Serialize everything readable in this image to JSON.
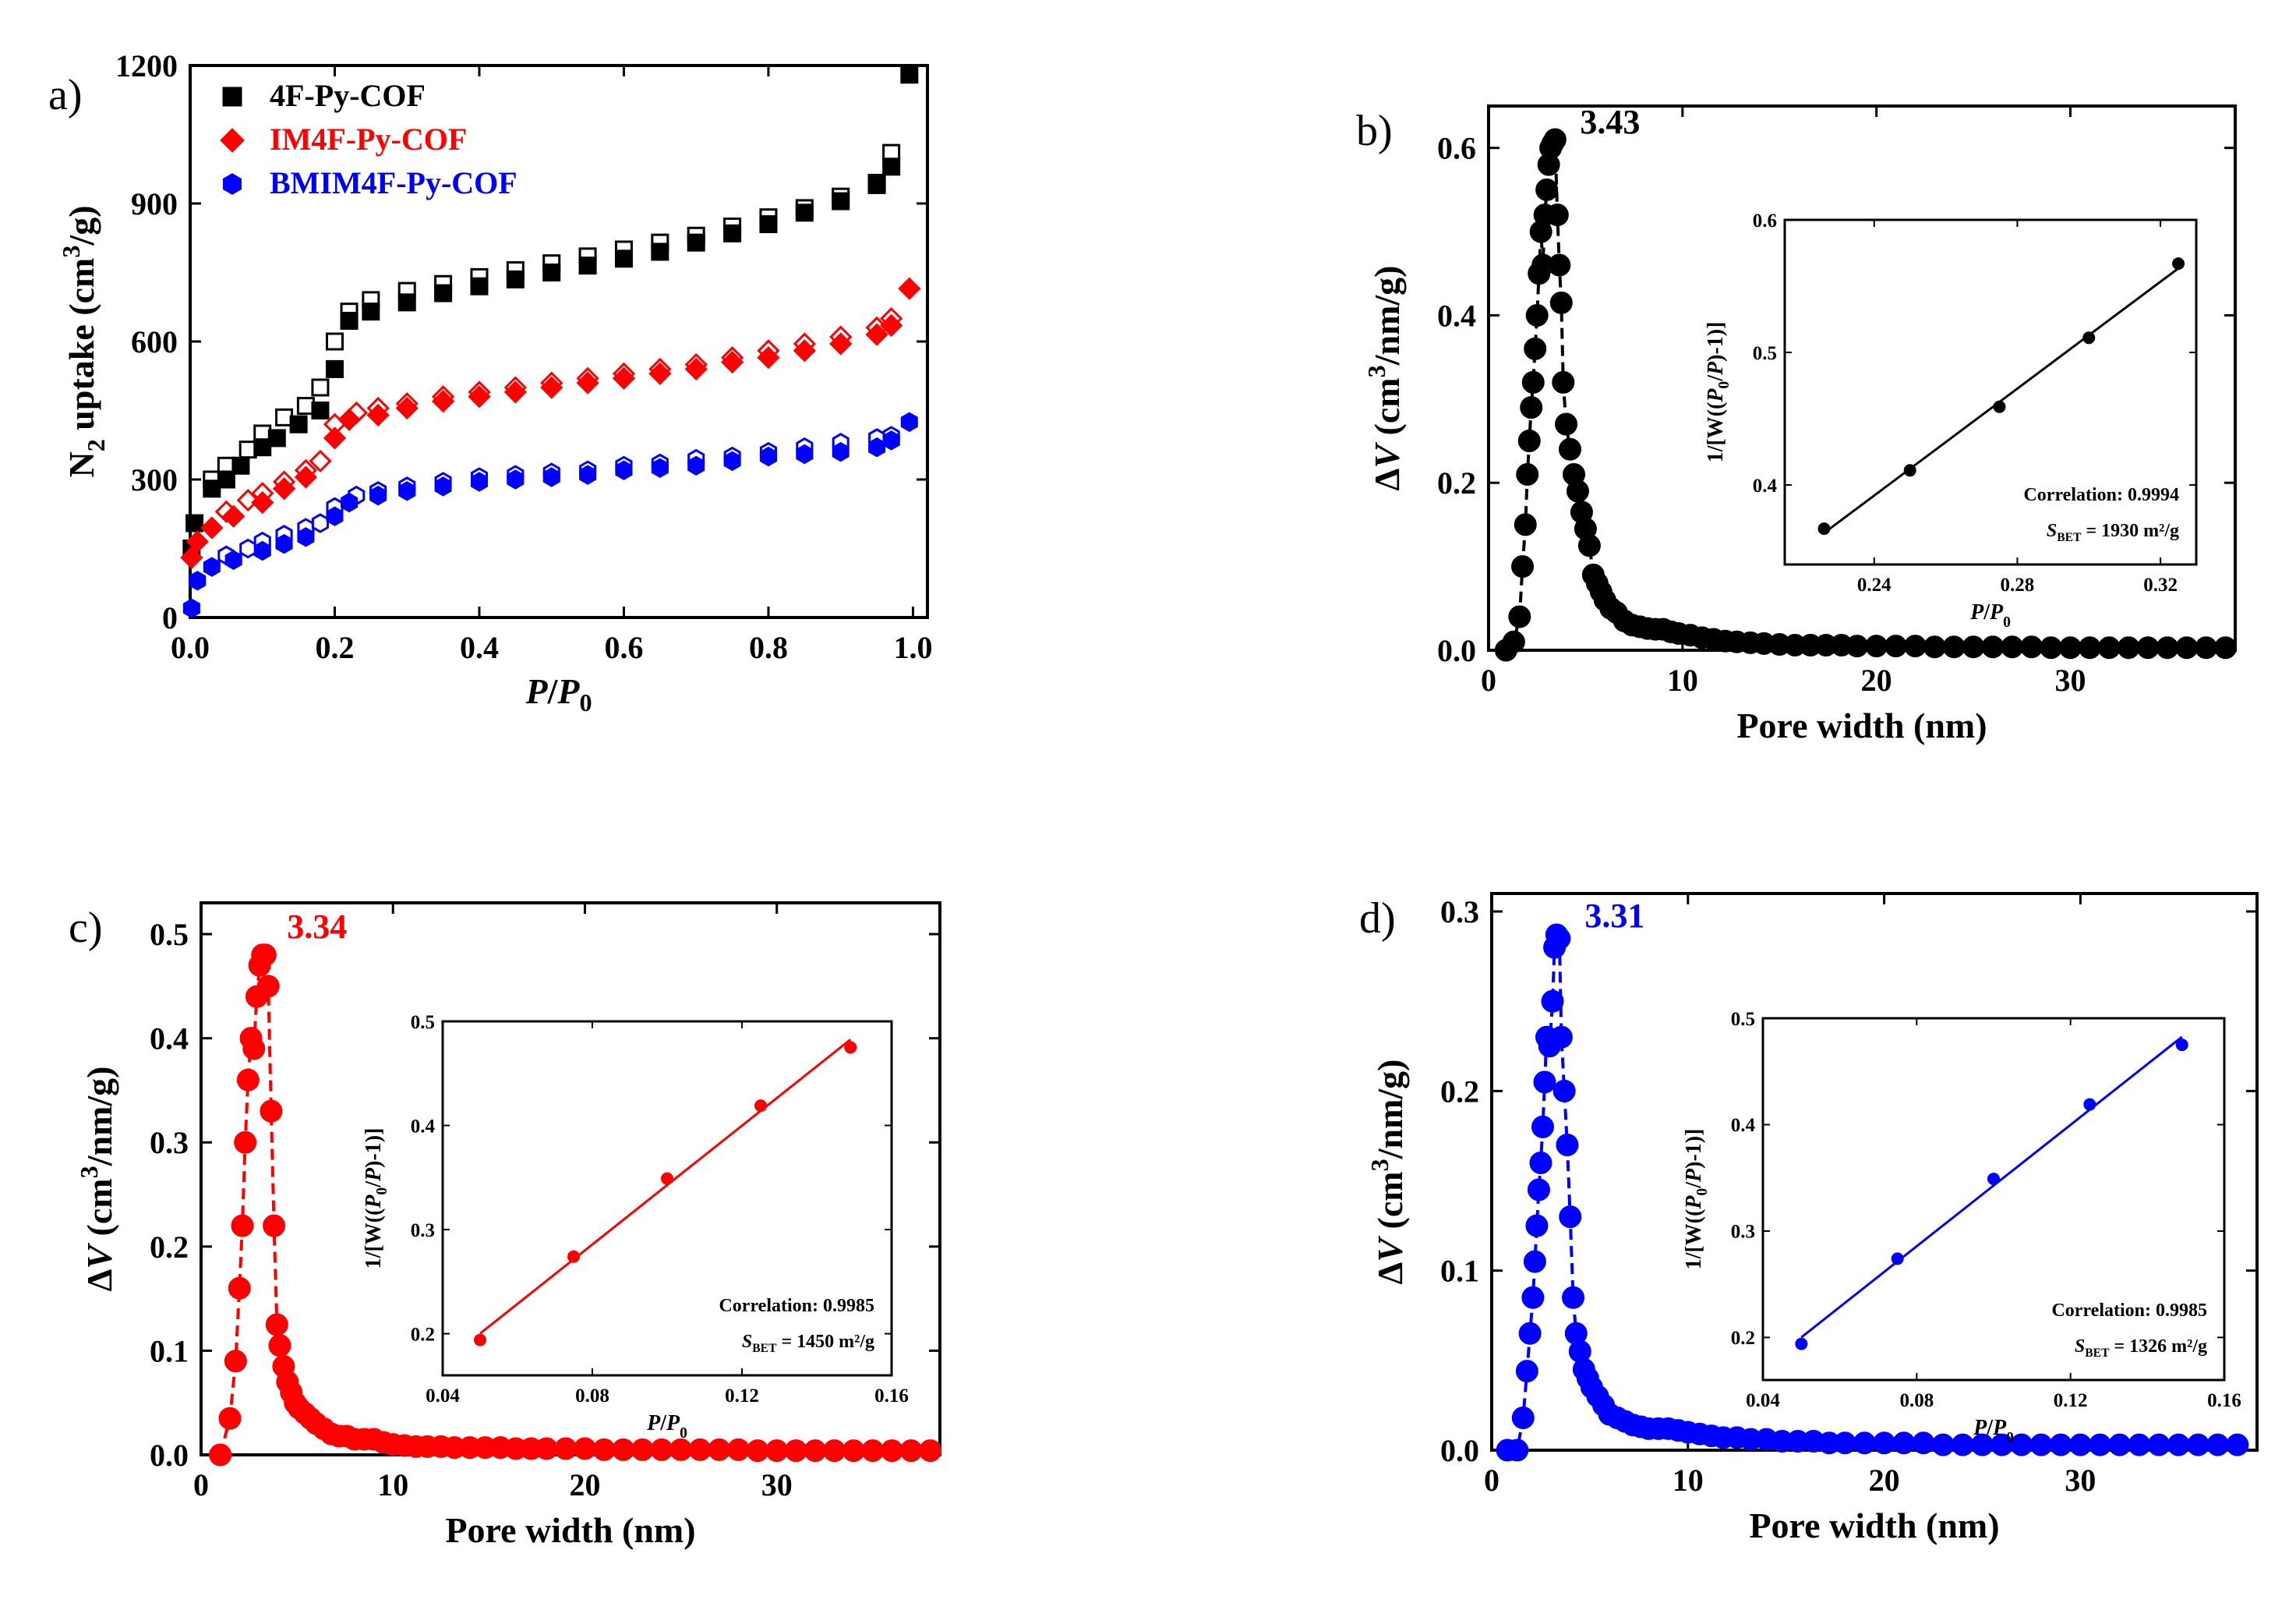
{
  "chart_data": [
    {
      "id": "a",
      "type": "scatter",
      "panel_label": "a)",
      "xlabel": "P/P0",
      "ylabel": "N2 uptake (cm3/g)",
      "xlim": [
        0,
        1.02
      ],
      "ylim": [
        0,
        1200
      ],
      "xticks": [
        "0.0",
        "0.2",
        "0.4",
        "0.6",
        "0.8",
        "1.0"
      ],
      "xtick_values": [
        0,
        0.2,
        0.4,
        0.6,
        0.8,
        1.0
      ],
      "yticks": [
        "0",
        "300",
        "600",
        "900",
        "1200"
      ],
      "ytick_values": [
        0,
        300,
        600,
        900,
        1200
      ],
      "legend_position": "top-left",
      "series": [
        {
          "name": "4F-Py-COF",
          "color": "#000000",
          "marker": "square",
          "adsorption": {
            "x": [
              0.002,
              0.006,
              0.03,
              0.05,
              0.07,
              0.1,
              0.12,
              0.15,
              0.18,
              0.2,
              0.22,
              0.25,
              0.3,
              0.35,
              0.4,
              0.45,
              0.5,
              0.55,
              0.6,
              0.65,
              0.7,
              0.75,
              0.8,
              0.85,
              0.9,
              0.95,
              0.97,
              0.995
            ],
            "y": [
              150,
              205,
              280,
              300,
              330,
              370,
              390,
              420,
              450,
              540,
              645,
              665,
              685,
              705,
              720,
              735,
              750,
              765,
              780,
              795,
              815,
              835,
              855,
              880,
              905,
              940,
              980,
              1180
            ]
          },
          "desorption": {
            "x": [
              0.03,
              0.05,
              0.08,
              0.1,
              0.13,
              0.16,
              0.18,
              0.2,
              0.22,
              0.25,
              0.3,
              0.35,
              0.4,
              0.45,
              0.5,
              0.55,
              0.6,
              0.65,
              0.7,
              0.75,
              0.8,
              0.85,
              0.9,
              0.95,
              0.97
            ],
            "y": [
              300,
              330,
              365,
              400,
              435,
              460,
              500,
              600,
              665,
              690,
              710,
              725,
              740,
              755,
              770,
              785,
              800,
              815,
              830,
              850,
              870,
              890,
              915,
              945,
              1010
            ]
          }
        },
        {
          "name": "IM4F-Py-COF",
          "color": "#ff0000",
          "marker": "diamond",
          "adsorption": {
            "x": [
              0.002,
              0.01,
              0.03,
              0.06,
              0.1,
              0.13,
              0.16,
              0.2,
              0.22,
              0.26,
              0.3,
              0.35,
              0.4,
              0.45,
              0.5,
              0.55,
              0.6,
              0.65,
              0.7,
              0.75,
              0.8,
              0.85,
              0.9,
              0.95,
              0.97,
              0.995
            ],
            "y": [
              130,
              165,
              195,
              220,
              250,
              280,
              305,
              390,
              430,
              440,
              455,
              470,
              480,
              490,
              500,
              510,
              520,
              530,
              540,
              555,
              565,
              580,
              595,
              615,
              635,
              715
            ]
          },
          "desorption": {
            "x": [
              0.05,
              0.08,
              0.1,
              0.13,
              0.16,
              0.18,
              0.2,
              0.23,
              0.26,
              0.3,
              0.35,
              0.4,
              0.45,
              0.5,
              0.55,
              0.6,
              0.65,
              0.7,
              0.75,
              0.8,
              0.85,
              0.9,
              0.95,
              0.97
            ],
            "y": [
              230,
              255,
              270,
              295,
              320,
              340,
              420,
              445,
              455,
              465,
              480,
              490,
              500,
              510,
              520,
              530,
              540,
              550,
              565,
              580,
              595,
              610,
              630,
              650
            ]
          }
        },
        {
          "name": "BMIM4F-Py-COF",
          "color": "#0000ff",
          "marker": "hexagon",
          "adsorption": {
            "x": [
              0.002,
              0.01,
              0.03,
              0.06,
              0.1,
              0.13,
              0.16,
              0.2,
              0.22,
              0.26,
              0.3,
              0.35,
              0.4,
              0.45,
              0.5,
              0.55,
              0.6,
              0.65,
              0.7,
              0.75,
              0.8,
              0.85,
              0.9,
              0.95,
              0.97,
              0.995
            ],
            "y": [
              20,
              80,
              110,
              125,
              145,
              160,
              175,
              220,
              250,
              265,
              275,
              285,
              295,
              300,
              305,
              310,
              320,
              325,
              330,
              340,
              350,
              355,
              360,
              370,
              385,
              425
            ]
          },
          "desorption": {
            "x": [
              0.05,
              0.08,
              0.1,
              0.13,
              0.16,
              0.18,
              0.2,
              0.23,
              0.26,
              0.3,
              0.35,
              0.4,
              0.45,
              0.5,
              0.55,
              0.6,
              0.65,
              0.7,
              0.75,
              0.8,
              0.85,
              0.9,
              0.95,
              0.97
            ],
            "y": [
              135,
              150,
              165,
              180,
              195,
              205,
              240,
              265,
              275,
              285,
              295,
              305,
              310,
              315,
              320,
              330,
              335,
              345,
              350,
              360,
              370,
              380,
              390,
              395
            ]
          }
        }
      ]
    },
    {
      "id": "b",
      "type": "scatter",
      "panel_label": "b)",
      "color": "#000000",
      "xlabel": "Pore width (nm)",
      "ylabel": "ΔV (cm3/nm/g)",
      "xlim": [
        0,
        38.5
      ],
      "ylim": [
        0,
        0.65
      ],
      "xticks": [
        "0",
        "10",
        "20",
        "30"
      ],
      "xtick_values": [
        0,
        10,
        20,
        30
      ],
      "yticks": [
        "0.0",
        "0.2",
        "0.4",
        "0.6"
      ],
      "ytick_values": [
        0,
        0.2,
        0.4,
        0.6
      ],
      "peak_label": "3.43",
      "peak": {
        "x": 3.43,
        "y": 0.61
      },
      "x": [
        0.9,
        1.3,
        1.6,
        1.75,
        1.9,
        2.0,
        2.1,
        2.2,
        2.3,
        2.4,
        2.5,
        2.6,
        2.7,
        2.8,
        2.9,
        3.0,
        3.1,
        3.2,
        3.3,
        3.43,
        3.55,
        3.65,
        3.75,
        3.85,
        4.0,
        4.2,
        4.4,
        4.6,
        4.8,
        5.0,
        5.2,
        5.4,
        5.6,
        5.8,
        6.0,
        6.3,
        6.6,
        7.0,
        7.4,
        7.8,
        8.2,
        8.6,
        9.0,
        9.4,
        9.8,
        10.4,
        11.0,
        11.6,
        12.2,
        12.8,
        13.5,
        14.2,
        15.0,
        15.8,
        16.6,
        17.4,
        18.2,
        19.0,
        20.0,
        21.0,
        22.0,
        23.0,
        24.0,
        25.0,
        26.0,
        27.0,
        28.0,
        29.0,
        30.0,
        31.0,
        32.0,
        33.0,
        34.0,
        35.0,
        36.0,
        37.0,
        38.0
      ],
      "y": [
        0.0,
        0.01,
        0.04,
        0.1,
        0.15,
        0.21,
        0.25,
        0.29,
        0.32,
        0.36,
        0.4,
        0.45,
        0.5,
        0.46,
        0.52,
        0.55,
        0.58,
        0.6,
        0.605,
        0.61,
        0.52,
        0.46,
        0.415,
        0.32,
        0.27,
        0.24,
        0.21,
        0.19,
        0.165,
        0.145,
        0.125,
        0.09,
        0.08,
        0.07,
        0.06,
        0.05,
        0.045,
        0.035,
        0.03,
        0.028,
        0.026,
        0.025,
        0.025,
        0.022,
        0.02,
        0.018,
        0.015,
        0.013,
        0.011,
        0.01,
        0.009,
        0.008,
        0.007,
        0.006,
        0.006,
        0.006,
        0.006,
        0.005,
        0.005,
        0.005,
        0.005,
        0.004,
        0.004,
        0.004,
        0.004,
        0.004,
        0.004,
        0.003,
        0.003,
        0.003,
        0.003,
        0.003,
        0.003,
        0.003,
        0.003,
        0.003,
        0.003
      ],
      "inset": {
        "type": "line",
        "xlabel": "P/P0",
        "ylabel": "1/[W((P0/P)-1)]",
        "xlim": [
          0.215,
          0.33
        ],
        "ylim": [
          0.34,
          0.6
        ],
        "xticks": [
          "0.24",
          "0.28",
          "0.32"
        ],
        "xtick_values": [
          0.24,
          0.28,
          0.32
        ],
        "yticks": [
          "0.4",
          "0.5",
          "0.6"
        ],
        "ytick_values": [
          0.4,
          0.5,
          0.6
        ],
        "x": [
          0.226,
          0.25,
          0.275,
          0.3,
          0.325
        ],
        "y": [
          0.367,
          0.411,
          0.459,
          0.511,
          0.567
        ],
        "correlation": "Correlation: 0.9994",
        "sbet_prefix": "S",
        "sbet_sub": "BET",
        "sbet_value": "= 1930 m2/g"
      }
    },
    {
      "id": "c",
      "type": "scatter",
      "panel_label": "c)",
      "color": "#ff0000",
      "xlabel": "Pore width (nm)",
      "ylabel": "ΔV (cm3/nm/g)",
      "xlim": [
        0,
        38.5
      ],
      "ylim": [
        0,
        0.53
      ],
      "xticks": [
        "0",
        "10",
        "20",
        "30"
      ],
      "xtick_values": [
        0,
        10,
        20,
        30
      ],
      "yticks": [
        "0.0",
        "0.1",
        "0.2",
        "0.3",
        "0.4",
        "0.5"
      ],
      "ytick_values": [
        0,
        0.1,
        0.2,
        0.3,
        0.4,
        0.5
      ],
      "peak_label": "3.34",
      "peak": {
        "x": 3.34,
        "y": 0.48
      },
      "x": [
        1.0,
        1.5,
        1.8,
        2.0,
        2.15,
        2.3,
        2.45,
        2.6,
        2.75,
        2.9,
        3.05,
        3.2,
        3.34,
        3.5,
        3.65,
        3.8,
        3.95,
        4.1,
        4.3,
        4.5,
        4.7,
        4.9,
        5.1,
        5.4,
        5.7,
        6.0,
        6.4,
        6.8,
        7.2,
        7.6,
        8.0,
        8.5,
        9.0,
        9.5,
        10.0,
        10.6,
        11.2,
        11.8,
        12.5,
        13.2,
        14.0,
        14.8,
        15.6,
        16.4,
        17.2,
        18.0,
        19.0,
        20.0,
        21.0,
        22.0,
        23.0,
        24.0,
        25.0,
        26.0,
        27.0,
        28.0,
        29.0,
        30.0,
        31.0,
        32.0,
        33.0,
        34.0,
        35.0,
        36.0,
        37.0,
        38.0
      ],
      "y": [
        0.0,
        0.035,
        0.09,
        0.16,
        0.22,
        0.3,
        0.36,
        0.4,
        0.39,
        0.44,
        0.47,
        0.48,
        0.48,
        0.45,
        0.33,
        0.22,
        0.125,
        0.105,
        0.085,
        0.07,
        0.06,
        0.05,
        0.045,
        0.04,
        0.035,
        0.03,
        0.025,
        0.02,
        0.018,
        0.018,
        0.015,
        0.015,
        0.015,
        0.012,
        0.01,
        0.009,
        0.008,
        0.008,
        0.008,
        0.007,
        0.007,
        0.007,
        0.007,
        0.006,
        0.006,
        0.006,
        0.006,
        0.006,
        0.005,
        0.005,
        0.005,
        0.005,
        0.005,
        0.005,
        0.005,
        0.005,
        0.004,
        0.004,
        0.004,
        0.004,
        0.004,
        0.004,
        0.004,
        0.004,
        0.004,
        0.004
      ],
      "inset": {
        "type": "line",
        "xlabel": "P/P0",
        "ylabel": "1/[W((P0/P)-1)]",
        "xlim": [
          0.04,
          0.16
        ],
        "ylim": [
          0.16,
          0.5
        ],
        "xticks": [
          "0.04",
          "0.08",
          "0.12",
          "0.16"
        ],
        "xtick_values": [
          0.04,
          0.08,
          0.12,
          0.16
        ],
        "yticks": [
          "0.2",
          "0.3",
          "0.4",
          "0.5"
        ],
        "ytick_values": [
          0.2,
          0.3,
          0.4,
          0.5
        ],
        "x": [
          0.05,
          0.075,
          0.1,
          0.125,
          0.149
        ],
        "y": [
          0.194,
          0.274,
          0.349,
          0.419,
          0.475
        ],
        "correlation": "Correlation: 0.9985",
        "sbet_prefix": "S",
        "sbet_sub": "BET",
        "sbet_value": "= 1450 m2/g"
      }
    },
    {
      "id": "d",
      "type": "scatter",
      "panel_label": "d)",
      "color": "#0000ff",
      "xlabel": "Pore width (nm)",
      "ylabel": "ΔV (cm3/nm/g)",
      "xlim": [
        0,
        39
      ],
      "ylim": [
        0,
        0.31
      ],
      "xticks": [
        "0",
        "10",
        "20",
        "30"
      ],
      "xtick_values": [
        0,
        10,
        20,
        30
      ],
      "yticks": [
        "0.0",
        "0.1",
        "0.2",
        "0.3"
      ],
      "ytick_values": [
        0,
        0.1,
        0.2,
        0.3
      ],
      "peak_label": "3.31",
      "peak": {
        "x": 3.31,
        "y": 0.287
      },
      "x": [
        0.8,
        1.3,
        1.6,
        1.8,
        1.95,
        2.1,
        2.2,
        2.3,
        2.4,
        2.5,
        2.6,
        2.7,
        2.8,
        2.95,
        3.1,
        3.2,
        3.31,
        3.45,
        3.55,
        3.7,
        3.85,
        4.0,
        4.15,
        4.3,
        4.5,
        4.7,
        4.9,
        5.1,
        5.4,
        5.7,
        6.0,
        6.4,
        6.8,
        7.2,
        7.6,
        8.0,
        8.5,
        9.0,
        9.5,
        10.0,
        10.6,
        11.2,
        11.8,
        12.5,
        13.2,
        14.0,
        14.8,
        15.6,
        16.4,
        17.2,
        18.0,
        19.0,
        20.0,
        21.0,
        22.0,
        23.0,
        24.0,
        25.0,
        26.0,
        27.0,
        28.0,
        29.0,
        30.0,
        31.0,
        32.0,
        33.0,
        34.0,
        35.0,
        36.0,
        37.0,
        38.0
      ],
      "y": [
        0.0,
        0.0,
        0.018,
        0.044,
        0.065,
        0.085,
        0.105,
        0.125,
        0.145,
        0.16,
        0.18,
        0.205,
        0.23,
        0.225,
        0.25,
        0.28,
        0.287,
        0.285,
        0.23,
        0.2,
        0.17,
        0.13,
        0.085,
        0.065,
        0.055,
        0.045,
        0.04,
        0.035,
        0.03,
        0.025,
        0.02,
        0.018,
        0.016,
        0.014,
        0.013,
        0.012,
        0.012,
        0.012,
        0.011,
        0.01,
        0.009,
        0.008,
        0.007,
        0.007,
        0.006,
        0.006,
        0.005,
        0.005,
        0.005,
        0.004,
        0.004,
        0.004,
        0.004,
        0.004,
        0.004,
        0.003,
        0.003,
        0.003,
        0.003,
        0.003,
        0.003,
        0.003,
        0.003,
        0.003,
        0.003,
        0.003,
        0.003,
        0.003,
        0.003,
        0.003,
        0.003
      ],
      "inset": {
        "type": "line",
        "xlabel": "P/P0",
        "ylabel": "1/[W((P0/P)-1)]",
        "xlim": [
          0.04,
          0.16
        ],
        "ylim": [
          0.16,
          0.5
        ],
        "xticks": [
          "0.04",
          "0.08",
          "0.12",
          "0.16"
        ],
        "xtick_values": [
          0.04,
          0.08,
          0.12,
          0.16
        ],
        "yticks": [
          "0.2",
          "0.3",
          "0.4",
          "0.5"
        ],
        "ytick_values": [
          0.2,
          0.3,
          0.4,
          0.5
        ],
        "x": [
          0.05,
          0.075,
          0.1,
          0.125,
          0.149
        ],
        "y": [
          0.194,
          0.274,
          0.349,
          0.419,
          0.475
        ],
        "correlation": "Correlation: 0.9985",
        "sbet_prefix": "S",
        "sbet_sub": "BET",
        "sbet_value": "= 1326 m2/g"
      }
    }
  ]
}
